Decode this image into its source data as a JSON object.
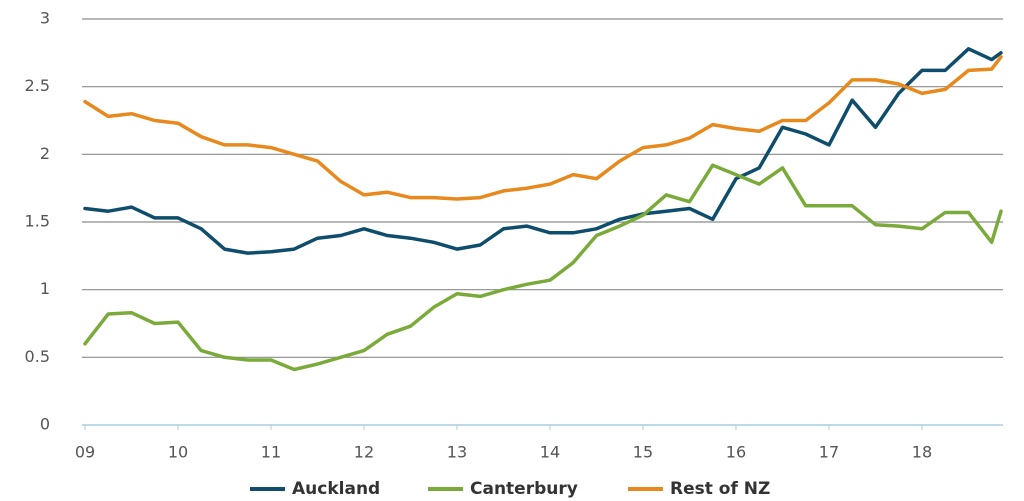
{
  "chart_data": {
    "type": "line",
    "x": [
      9,
      9.25,
      9.5,
      9.75,
      10,
      10.25,
      10.5,
      10.75,
      11,
      11.25,
      11.5,
      11.75,
      12,
      12.25,
      12.5,
      12.75,
      13,
      13.25,
      13.5,
      13.75,
      14,
      14.25,
      14.5,
      14.75,
      15,
      15.25,
      15.5,
      15.75,
      16,
      16.25,
      16.5,
      16.75,
      17,
      17.25,
      17.5,
      17.75,
      18,
      18.25,
      18.5,
      18.75,
      18.85
    ],
    "series": [
      {
        "name": "Auckland",
        "color": "#0f4d6c",
        "values": [
          1.6,
          1.58,
          1.61,
          1.53,
          1.53,
          1.45,
          1.3,
          1.27,
          1.28,
          1.3,
          1.38,
          1.4,
          1.45,
          1.4,
          1.38,
          1.35,
          1.3,
          1.33,
          1.45,
          1.47,
          1.42,
          1.42,
          1.45,
          1.52,
          1.56,
          1.58,
          1.6,
          1.52,
          1.82,
          1.9,
          2.2,
          2.15,
          2.07,
          2.4,
          2.2,
          2.45,
          2.62,
          2.62,
          2.78,
          2.7,
          2.75
        ]
      },
      {
        "name": "Canterbury",
        "color": "#7aab3a",
        "values": [
          0.6,
          0.82,
          0.83,
          0.75,
          0.76,
          0.55,
          0.5,
          0.48,
          0.48,
          0.41,
          0.45,
          0.5,
          0.55,
          0.67,
          0.73,
          0.87,
          0.97,
          0.95,
          1.0,
          1.04,
          1.07,
          1.2,
          1.4,
          1.47,
          1.55,
          1.7,
          1.65,
          1.92,
          1.85,
          1.78,
          1.9,
          1.62,
          1.62,
          1.62,
          1.48,
          1.47,
          1.45,
          1.57,
          1.57,
          1.35,
          1.58
        ]
      },
      {
        "name": "Rest of NZ",
        "color": "#e8891e",
        "values": [
          2.39,
          2.28,
          2.3,
          2.25,
          2.23,
          2.13,
          2.07,
          2.07,
          2.05,
          2.0,
          1.95,
          1.8,
          1.7,
          1.72,
          1.68,
          1.68,
          1.67,
          1.68,
          1.73,
          1.75,
          1.78,
          1.85,
          1.82,
          1.95,
          2.05,
          2.07,
          2.12,
          2.22,
          2.19,
          2.17,
          2.25,
          2.25,
          2.38,
          2.55,
          2.55,
          2.52,
          2.45,
          2.48,
          2.62,
          2.63,
          2.72
        ]
      }
    ],
    "xlim": [
      9,
      18.85
    ],
    "xticks": [
      {
        "value": 9,
        "label": "09"
      },
      10,
      11,
      12,
      13,
      14,
      15,
      16,
      17,
      18
    ],
    "ylim": [
      0,
      3
    ],
    "yticks": [
      0,
      0.5,
      1,
      1.5,
      2,
      2.5,
      3
    ],
    "grid": true,
    "legend": "bottom"
  }
}
